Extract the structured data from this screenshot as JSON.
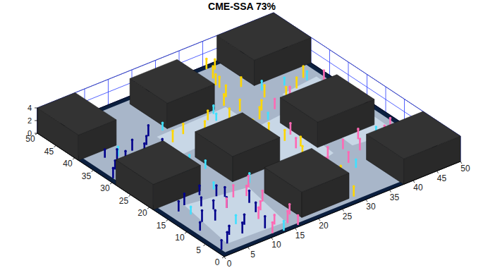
{
  "chart_data": {
    "type": "scatter3d",
    "title": "CME-SSA 73%",
    "xlim": [
      0,
      50
    ],
    "ylim": [
      0,
      50
    ],
    "zlim": [
      0,
      4
    ],
    "xticks": [
      0,
      5,
      10,
      15,
      20,
      25,
      30,
      35,
      40,
      45,
      50
    ],
    "yticks": [
      0,
      5,
      10,
      15,
      20,
      25,
      30,
      35,
      40,
      45,
      50
    ],
    "zticks": [
      0,
      2,
      4
    ],
    "grid": true,
    "marker": "stem",
    "obstacles": [
      {
        "x": [
          0,
          8
        ],
        "y": [
          39,
          50
        ],
        "z": [
          0,
          4
        ]
      },
      {
        "x": [
          18,
          28
        ],
        "y": [
          38,
          48
        ],
        "z": [
          0,
          4
        ]
      },
      {
        "x": [
          38,
          50
        ],
        "y": [
          40,
          50
        ],
        "z": [
          0,
          4
        ]
      },
      {
        "x": [
          34,
          46
        ],
        "y": [
          18,
          28
        ],
        "z": [
          0,
          4
        ]
      },
      {
        "x": [
          38,
          50
        ],
        "y": [
          0,
          10
        ],
        "z": [
          0,
          4
        ]
      },
      {
        "x": [
          16,
          26
        ],
        "y": [
          18,
          28
        ],
        "z": [
          0,
          4
        ]
      },
      {
        "x": [
          0,
          10
        ],
        "y": [
          19,
          29
        ],
        "z": [
          0,
          4
        ]
      },
      {
        "x": [
          18,
          28
        ],
        "y": [
          2,
          12
        ],
        "z": [
          0,
          4
        ]
      }
    ],
    "series": [
      {
        "color": "#00008b",
        "x": [
          1,
          3,
          5,
          7,
          9,
          11,
          13,
          2,
          4,
          6,
          8,
          10,
          12,
          14,
          3,
          5,
          7,
          9,
          11,
          1,
          3,
          5,
          7,
          9,
          2,
          4,
          6,
          11,
          13,
          12,
          14,
          10
        ],
        "y": [
          2,
          3,
          5,
          4,
          6,
          3,
          8,
          9,
          11,
          10,
          13,
          12,
          15,
          11,
          16,
          17,
          15,
          18,
          16,
          31,
          33,
          35,
          32,
          36,
          30,
          37,
          34,
          31,
          33,
          36,
          38,
          34
        ],
        "z": [
          1.5,
          1.8,
          1.4,
          1.7,
          1.6,
          1.9,
          1.5,
          1.3,
          1.8,
          1.6,
          1.4,
          1.7,
          1.5,
          1.9,
          1.6,
          1.8,
          1.4,
          1.5,
          1.7,
          1.6,
          1.4,
          1.8,
          1.5,
          1.7,
          1.9,
          1.3,
          1.6,
          1.5,
          1.8,
          1.4,
          1.7,
          1.6
        ]
      },
      {
        "color": "#ff69b4",
        "x": [
          11,
          13,
          15,
          17,
          12,
          14,
          16,
          10,
          13,
          15,
          17,
          16,
          31,
          33,
          35,
          37,
          39,
          41,
          43,
          45,
          47,
          49,
          31,
          33,
          48,
          49,
          36,
          40,
          44,
          48
        ],
        "y": [
          1,
          3,
          2,
          4,
          6,
          8,
          10,
          12,
          14,
          13,
          15,
          0.5,
          12,
          14,
          11,
          15,
          13,
          16,
          12,
          14,
          15,
          13,
          20,
          24,
          22,
          26,
          32,
          33,
          31,
          34
        ],
        "z": [
          1.7,
          1.5,
          1.9,
          1.6,
          1.8,
          1.4,
          1.7,
          1.5,
          1.9,
          1.6,
          1.8,
          1.5,
          1.6,
          1.9,
          1.7,
          1.5,
          1.8,
          1.6,
          1.4,
          1.7,
          1.9,
          1.5,
          1.6,
          1.8,
          1.7,
          1.5,
          1.6,
          1.9,
          1.4,
          1.7
        ]
      },
      {
        "color": "#ffd700",
        "x": [
          16,
          19,
          22,
          25,
          28,
          31,
          34,
          37,
          40,
          43,
          46,
          29,
          30,
          31,
          32,
          30,
          29,
          29,
          31,
          30,
          29,
          32,
          33,
          34,
          35,
          36,
          30,
          33,
          36,
          32
        ],
        "y": [
          34,
          35,
          33,
          36,
          34,
          35,
          33,
          36,
          34,
          35,
          37,
          29,
          26,
          23,
          20,
          17,
          14,
          11,
          8,
          5,
          2,
          40,
          43,
          46,
          49,
          41,
          38,
          44,
          48,
          31
        ],
        "z": [
          1.8,
          1.6,
          1.9,
          1.5,
          1.7,
          1.8,
          1.6,
          1.9,
          1.5,
          1.7,
          1.8,
          1.6,
          1.9,
          1.7,
          1.5,
          1.8,
          1.6,
          1.7,
          1.9,
          1.5,
          1.6,
          1.8,
          1.7,
          1.9,
          1.6,
          1.5,
          1.8,
          1.7,
          1.6,
          1.9
        ]
      },
      {
        "color": "#40e0ff",
        "x": [
          4,
          8,
          12,
          15,
          18,
          21,
          24,
          27,
          33,
          38,
          42,
          46,
          14,
          9,
          6,
          20,
          35,
          44,
          47,
          13,
          24,
          26,
          12,
          17
        ],
        "y": [
          14,
          7,
          18,
          24,
          16,
          14,
          31,
          37,
          30,
          38,
          37,
          36,
          27,
          33,
          36,
          30,
          9,
          15,
          30,
          0.5,
          15,
          35,
          25,
          38
        ],
        "z": [
          1.2,
          1.4,
          1.1,
          1.3,
          1.5,
          1.2,
          1.4,
          1.3,
          1.1,
          1.5,
          1.2,
          1.4,
          1.3,
          1.2,
          1.5,
          1.1,
          1.3,
          1.4,
          1.2,
          1.5,
          1.3,
          1.1,
          1.4,
          1.2
        ]
      }
    ]
  }
}
